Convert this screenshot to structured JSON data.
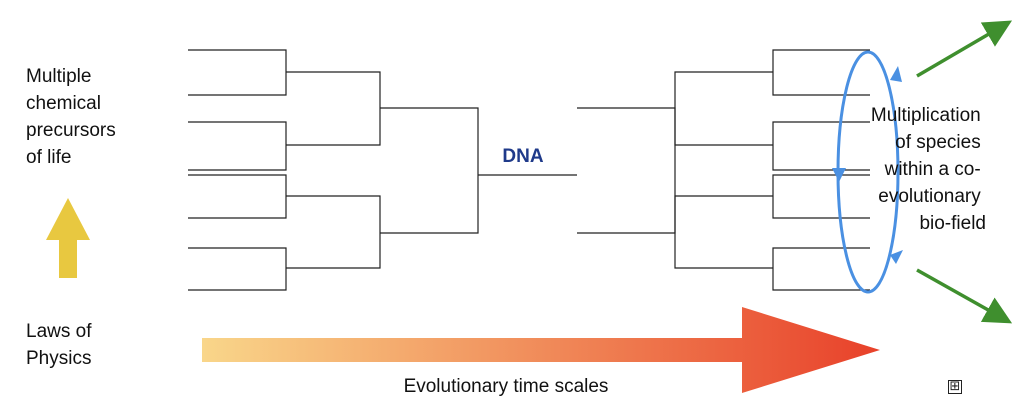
{
  "labels": {
    "precursors": [
      "Multiple",
      "chemical",
      "precursors",
      "of life"
    ],
    "laws": [
      "Laws of",
      "Physics"
    ],
    "dna": "DNA",
    "multiplication": [
      "Multiplication",
      "of species",
      "within a co-",
      "evolutionary",
      "bio-field"
    ],
    "timescale": "Evolutionary time scales"
  },
  "icons": {
    "up_arrow": "up-arrow-icon",
    "time_arrow": "right-arrow-icon",
    "expand": "expand-icon"
  },
  "expand_glyph": "⊞",
  "colors": {
    "up_arrow": "#e8c840",
    "time_arrow_start": "#f9d68a",
    "time_arrow_end": "#e8412a",
    "dna_text": "#1f3a8a",
    "cycle": "#4a90e2",
    "green_arrows": "#3f8f2e",
    "lines": "#222222"
  }
}
